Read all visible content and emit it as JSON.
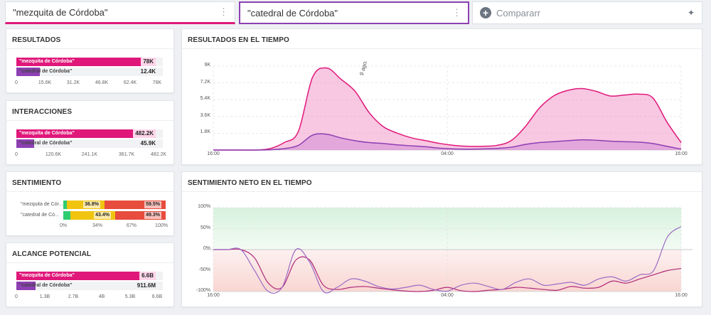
{
  "searches": [
    {
      "query": "\"mezquita de Córdoba\"",
      "color": "#e0187a"
    },
    {
      "query": "\"catedral de Córdoba\"",
      "color": "#8d3fb3"
    }
  ],
  "compare": {
    "label": "Compararr"
  },
  "resultados": {
    "title": "RESULTADOS",
    "bars": [
      {
        "label": "\"mezquita de Córdoba\"",
        "value": "78K",
        "fraction": 0.95,
        "color": "#e0187a"
      },
      {
        "label": "\"catedral de Córdoba\"",
        "value": "12.4K",
        "fraction": 0.16,
        "color": "#8d3fb3"
      }
    ],
    "ticks": [
      "0",
      "15.6K",
      "31.2K",
      "46.8K",
      "62.4K",
      "78K"
    ]
  },
  "interacciones": {
    "title": "INTERACCIONES",
    "bars": [
      {
        "label": "\"mezquita de Córdoba\"",
        "value": "482.2K",
        "fraction": 0.95,
        "color": "#e0187a"
      },
      {
        "label": "\"catedral de Córdoba\"",
        "value": "45.9K",
        "fraction": 0.12,
        "color": "#8d3fb3"
      }
    ],
    "ticks": [
      "0",
      "120.6K",
      "241.1K",
      "361.7K",
      "482.2K"
    ]
  },
  "sentimiento": {
    "title": "SENTIMIENTO",
    "rows": [
      {
        "label": "\"mezquita de Cór...",
        "positive": 3.7,
        "neutral": 36.8,
        "negative": 59.5,
        "neutral_label": "36.8%",
        "negative_label": "59.5%"
      },
      {
        "label": "\"catedral de Có...",
        "positive": 7.3,
        "neutral": 43.4,
        "negative": 49.3,
        "neutral_label": "43.4%",
        "negative_label": "49.3%"
      }
    ],
    "ticks": [
      "0%",
      "34%",
      "67%",
      "100%"
    ],
    "colors": {
      "positive": "#2ecc71",
      "neutral": "#f1c40f",
      "negative": "#e74c3c"
    }
  },
  "alcance": {
    "title": "ALCANCE POTENCIAL",
    "bars": [
      {
        "label": "\"mezquita de Córdoba\"",
        "value": "6.6B",
        "fraction": 0.95,
        "color": "#e0187a"
      },
      {
        "label": "\"catedral de Córdoba\"",
        "value": "911.6M",
        "fraction": 0.13,
        "color": "#8d3fb3"
      }
    ],
    "ticks": [
      "0",
      "1.3B",
      "2.7B",
      "4B",
      "5.3B",
      "6.6B"
    ]
  },
  "resultados_tiempo": {
    "title": "RESULTADOS EN EL TIEMPO",
    "annotation": "9 ago.",
    "chart_data": {
      "type": "area",
      "ylim": [
        0,
        9000
      ],
      "yticks": [
        "9K",
        "7.2K",
        "5.4K",
        "3.6K",
        "1.8K"
      ],
      "yvalues": [
        9000,
        7200,
        5400,
        3600,
        1800
      ],
      "xticks": [
        "16:00",
        "04:00",
        "16:00"
      ],
      "xpos": [
        0,
        0.5,
        1
      ],
      "series": [
        {
          "name": "\"mezquita de Córdoba\"",
          "color": "#e0187a",
          "values": [
            0,
            0,
            0,
            0,
            150,
            800,
            2000,
            7800,
            8800,
            7600,
            6300,
            4000,
            2500,
            1800,
            1300,
            1000,
            700,
            500,
            400,
            400,
            500,
            1000,
            2500,
            4500,
            5800,
            6400,
            6600,
            6300,
            5800,
            5900,
            6000,
            5600,
            3000,
            800
          ]
        },
        {
          "name": "\"catedral de Córdoba\"",
          "color": "#8d3fb3",
          "values": [
            0,
            0,
            0,
            0,
            30,
            150,
            500,
            1600,
            1700,
            1300,
            1000,
            800,
            700,
            550,
            450,
            350,
            200,
            120,
            100,
            120,
            180,
            300,
            600,
            800,
            900,
            1000,
            1100,
            1050,
            950,
            900,
            850,
            700,
            400,
            100
          ]
        }
      ]
    }
  },
  "sentimiento_tiempo": {
    "title": "SENTIMIENTO NETO EN EL TIEMPO",
    "chart_data": {
      "type": "line",
      "ylim": [
        -100,
        100
      ],
      "yticks": [
        "100%",
        "50%",
        "0%",
        "-50%",
        "-100%"
      ],
      "yvalues": [
        100,
        50,
        0,
        -50,
        -100
      ],
      "xticks": [
        "16:00",
        "04:00",
        "16:00"
      ],
      "xpos": [
        0,
        0.5,
        1
      ],
      "series": [
        {
          "name": "\"mezquita de Córdoba\"",
          "color": "#b02a7a",
          "values": [
            0,
            0,
            0,
            -20,
            -80,
            -90,
            -25,
            -25,
            -85,
            -95,
            -90,
            -88,
            -92,
            -96,
            -99,
            -100,
            -97,
            -90,
            -98,
            -100,
            -97,
            -95,
            -90,
            -92,
            -95,
            -97,
            -88,
            -92,
            -90,
            -75,
            -80,
            -70,
            -60,
            -50,
            -45
          ]
        },
        {
          "name": "\"catedral de Córdoba\"",
          "color": "#9b6ac4",
          "values": [
            0,
            0,
            0,
            -50,
            -100,
            -90,
            0,
            -30,
            -100,
            -90,
            -70,
            -75,
            -88,
            -94,
            -90,
            -85,
            -95,
            -99,
            -85,
            -80,
            -88,
            -95,
            -78,
            -70,
            -85,
            -82,
            -78,
            -85,
            -70,
            -65,
            -75,
            -60,
            -50,
            30,
            55
          ]
        }
      ]
    }
  }
}
